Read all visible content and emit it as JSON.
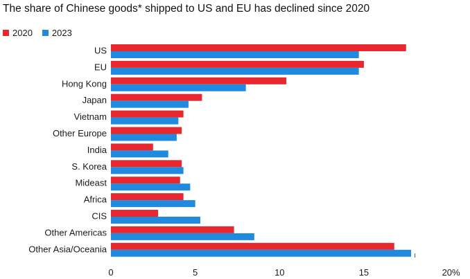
{
  "title": "The share of Chinese goods* shipped to US and EU has declined since 2020",
  "colors": {
    "s2020": "#e8282e",
    "s2023": "#1f8ae0"
  },
  "chart_data": {
    "type": "bar",
    "orientation": "horizontal",
    "categories": [
      "US",
      "EU",
      "Hong Kong",
      "Japan",
      "Vietnam",
      "Other Europe",
      "India",
      "S. Korea",
      "Mideast",
      "Africa",
      "CIS",
      "Other Americas",
      "Other Asia/Oceania"
    ],
    "series": [
      {
        "name": "2020",
        "values": [
          17.5,
          15.0,
          10.4,
          5.4,
          4.3,
          4.2,
          2.5,
          4.2,
          4.1,
          4.3,
          2.8,
          7.3,
          16.8
        ]
      },
      {
        "name": "2023",
        "values": [
          14.7,
          14.7,
          8.0,
          4.6,
          4.0,
          3.9,
          3.4,
          4.3,
          4.7,
          5.0,
          5.3,
          8.5,
          17.8
        ]
      }
    ],
    "xlim": [
      0,
      20
    ],
    "xticks": [
      "0",
      "5",
      "10",
      "15",
      "20%"
    ],
    "legend_position": "top-left",
    "grid": false
  }
}
